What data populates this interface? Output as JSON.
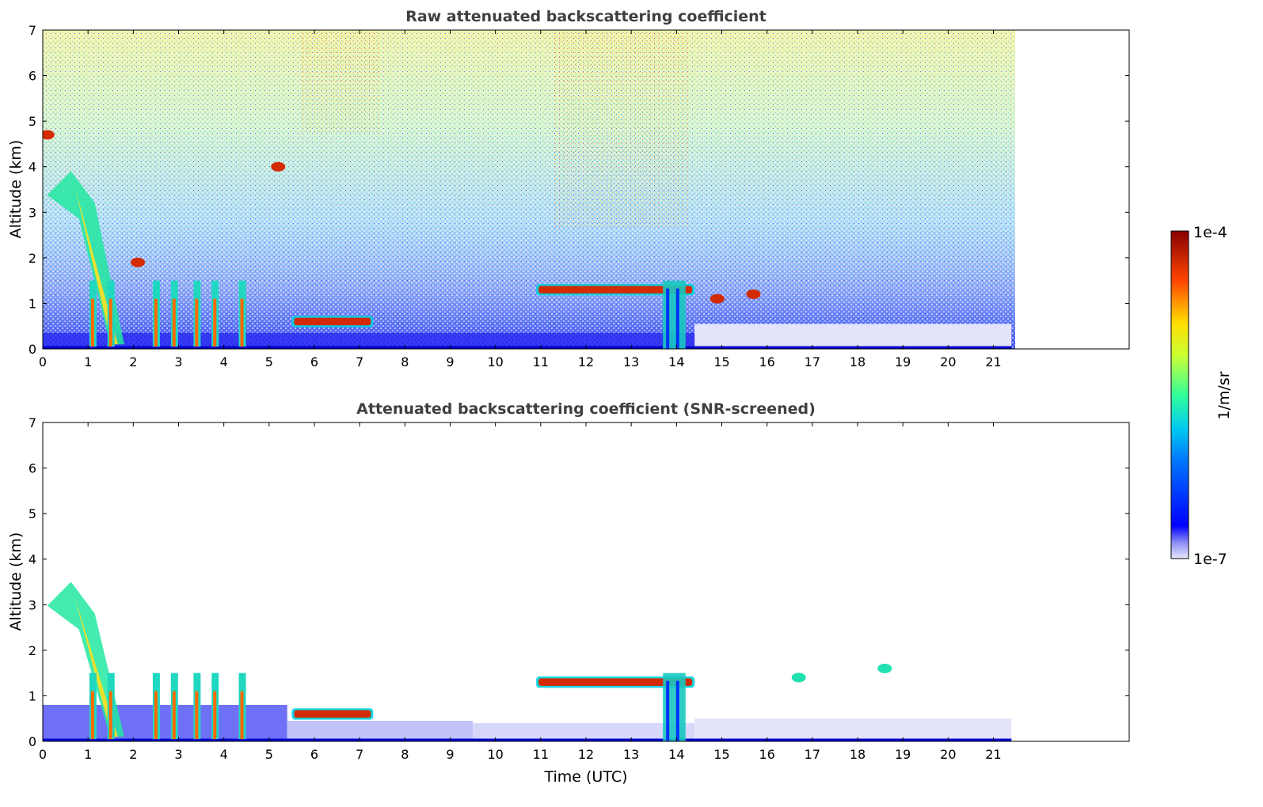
{
  "chart_data": [
    {
      "type": "heatmap",
      "title": "Raw attenuated backscattering coefficient",
      "xlabel": "",
      "ylabel": "Altitude (km)",
      "xlim": [
        0,
        24
      ],
      "ylim": [
        0,
        7
      ],
      "x_ticks": [
        "0",
        "1",
        "2",
        "3",
        "4",
        "5",
        "6",
        "7",
        "8",
        "9",
        "10",
        "11",
        "12",
        "13",
        "14",
        "15",
        "16",
        "17",
        "18",
        "19",
        "20",
        "21"
      ],
      "y_ticks": [
        "0",
        "1",
        "2",
        "3",
        "4",
        "5",
        "6",
        "7"
      ],
      "data_end_time": 21.4,
      "features": [
        {
          "kind": "aerosol_layer",
          "t_start": 5.5,
          "t_end": 7.3,
          "altitude": 0.6,
          "level": "high"
        },
        {
          "kind": "cloud_layer",
          "t_start": 10.9,
          "t_end": 14.4,
          "altitude": 1.3,
          "level": "high"
        },
        {
          "kind": "precipitation",
          "t_start": 13.7,
          "t_end": 14.2,
          "altitude_top": 1.5,
          "level": "medium"
        },
        {
          "kind": "cloud_plume",
          "t_start": 0.1,
          "t_end": 1.8,
          "altitude_top": 3.9,
          "level": "medium"
        },
        {
          "kind": "isolated_cloud",
          "t": 0.1,
          "altitude": 4.7,
          "level": "high"
        },
        {
          "kind": "isolated_cloud",
          "t": 5.2,
          "altitude": 4.0,
          "level": "high"
        },
        {
          "kind": "isolated_cloud",
          "t": 2.1,
          "altitude": 1.9,
          "level": "high"
        },
        {
          "kind": "isolated_cloud",
          "t": 14.9,
          "altitude": 1.1,
          "level": "high"
        },
        {
          "kind": "isolated_cloud",
          "t": 15.7,
          "altitude": 1.2,
          "level": "high"
        },
        {
          "kind": "noise_background",
          "t_start": 0,
          "t_end": 21.4,
          "altitude_range": [
            1.5,
            7
          ]
        }
      ]
    },
    {
      "type": "heatmap",
      "title": "Attenuated backscattering coefficient (SNR-screened)",
      "xlabel": "Time (UTC)",
      "ylabel": "Altitude (km)",
      "xlim": [
        0,
        24
      ],
      "ylim": [
        0,
        7
      ],
      "x_ticks": [
        "0",
        "1",
        "2",
        "3",
        "4",
        "5",
        "6",
        "7",
        "8",
        "9",
        "10",
        "11",
        "12",
        "13",
        "14",
        "15",
        "16",
        "17",
        "18",
        "19",
        "20",
        "21"
      ],
      "y_ticks": [
        "0",
        "1",
        "2",
        "3",
        "4",
        "5",
        "6",
        "7"
      ],
      "data_end_time": 21.4,
      "features": [
        {
          "kind": "aerosol_layer",
          "t_start": 5.5,
          "t_end": 7.3,
          "altitude": 0.6,
          "level": "high"
        },
        {
          "kind": "cloud_layer",
          "t_start": 10.9,
          "t_end": 14.4,
          "altitude": 1.3,
          "level": "high"
        },
        {
          "kind": "precipitation",
          "t_start": 13.7,
          "t_end": 14.2,
          "altitude_top": 1.5,
          "level": "medium"
        },
        {
          "kind": "cloud_plume",
          "t_start": 0.1,
          "t_end": 1.8,
          "altitude_top": 3.5,
          "level": "medium"
        },
        {
          "kind": "isolated_cloud",
          "t": 18.6,
          "altitude": 1.6,
          "level": "medium"
        },
        {
          "kind": "isolated_cloud",
          "t": 16.7,
          "altitude": 1.4,
          "level": "medium"
        }
      ]
    }
  ],
  "colorbar": {
    "label": "1/m/sr",
    "max_label": "1e-4",
    "min_label": "1e-7",
    "scale": "log",
    "range": [
      1e-07,
      0.0001
    ],
    "colormap": "jet"
  },
  "colors": {
    "title_text": "#404040",
    "axis_text": "#000000",
    "background": "#ffffff"
  }
}
